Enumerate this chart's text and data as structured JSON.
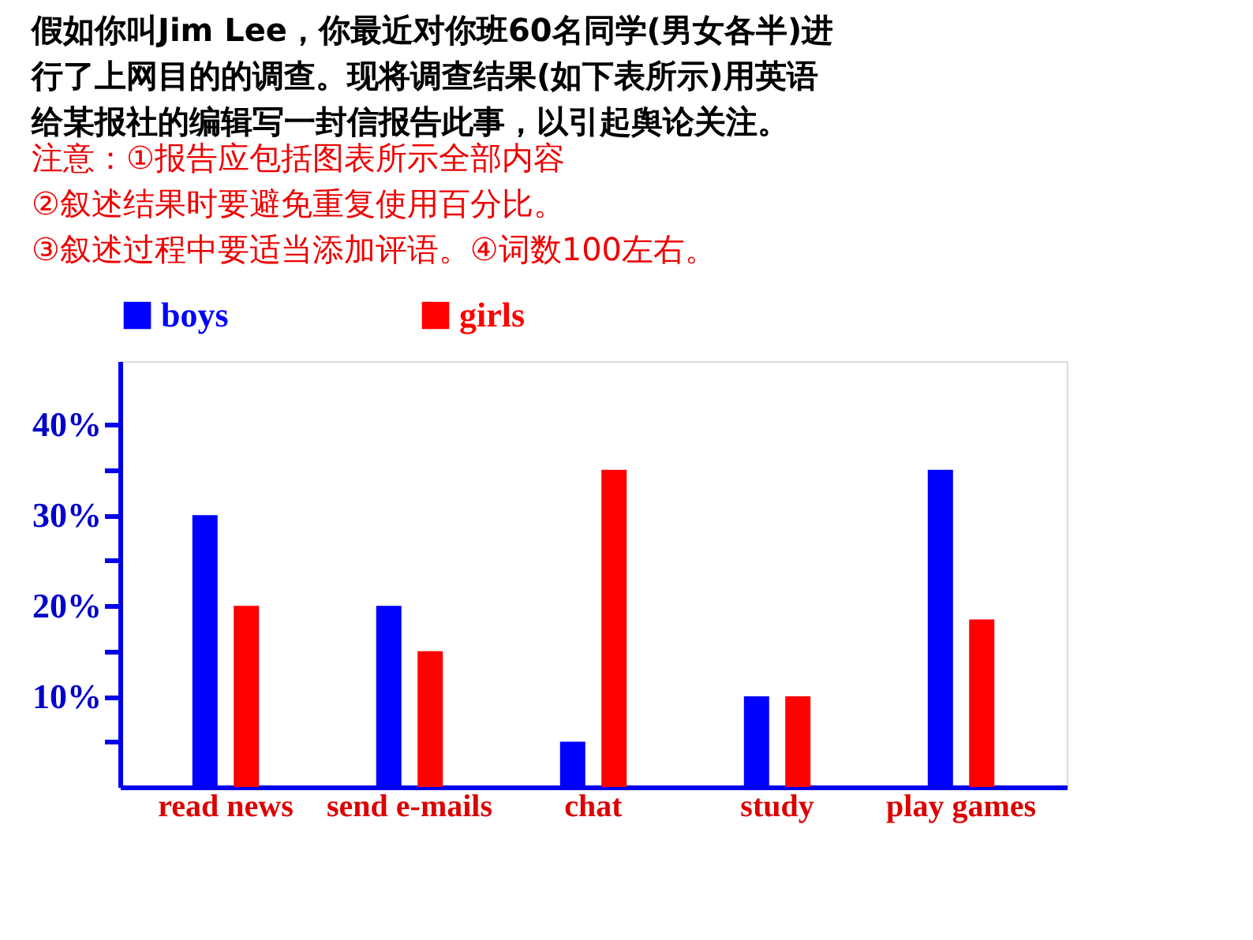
{
  "chart_data": {
    "type": "bar",
    "title": "假如你叫Jim Lee，你最近对你班60名同学(男女各半)进行了上网目的的调查。现将调查结果(如下表所示)用英语给某报社的编辑写一封信报告此事，以引起舆论关注。",
    "annotations": [
      "注意：①报告应包括图表所示全部内容",
      "②叙述结果时要避免重复使用百分比。",
      "③叙述过程中要适当添加评语。④词数100左右。"
    ],
    "categories": [
      "read news",
      "send e-mails",
      "chat",
      "study",
      "play games"
    ],
    "series": [
      {
        "name": "boys",
        "color": "#0000ff",
        "values": [
          30,
          20,
          5,
          10,
          35
        ]
      },
      {
        "name": "girls",
        "color": "#ff0000",
        "values": [
          20,
          15,
          35,
          10,
          18.5
        ]
      }
    ],
    "ylim": [
      0,
      47
    ],
    "yticks": [
      {
        "value": 5,
        "label": null
      },
      {
        "value": 10,
        "label": "10%"
      },
      {
        "value": 15,
        "label": null
      },
      {
        "value": 20,
        "label": "20%"
      },
      {
        "value": 25,
        "label": null
      },
      {
        "value": 30,
        "label": "30%"
      },
      {
        "value": 35,
        "label": null
      },
      {
        "value": 40,
        "label": "40%"
      }
    ],
    "grid": false,
    "legend": "top"
  }
}
